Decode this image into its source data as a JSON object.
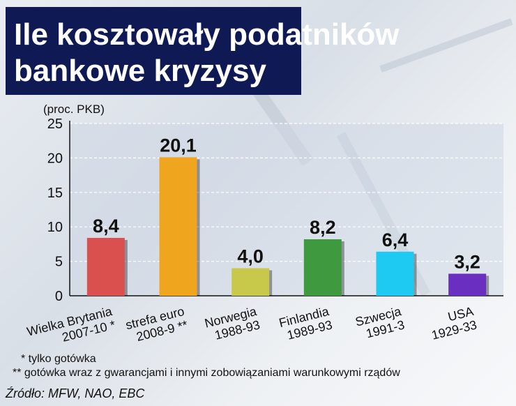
{
  "title": {
    "line1": "Ile kosztowały podatników",
    "line2": "bankowe kryzysy"
  },
  "chart_data": {
    "type": "bar",
    "ylabel": "(proc. PKB)",
    "ylim": [
      0,
      25
    ],
    "yticks": [
      0,
      5,
      10,
      15,
      20,
      25
    ],
    "grid": true,
    "categories": [
      [
        "Wielka Brytania",
        "2007-10 *"
      ],
      [
        "strefa euro",
        "2008-9 **"
      ],
      [
        "Norwegia",
        "1988-93"
      ],
      [
        "Finlandia",
        "1989-93"
      ],
      [
        "Szwecja",
        "1991-3"
      ],
      [
        "USA",
        "1929-33"
      ]
    ],
    "values": [
      8.4,
      20.1,
      4.0,
      8.2,
      6.4,
      3.2
    ],
    "value_labels": [
      "8,4",
      "20,1",
      "4,0",
      "8,2",
      "6,4",
      "3,2"
    ],
    "colors": [
      "#d9504e",
      "#f0a51f",
      "#c8c94a",
      "#3f9a3f",
      "#1fcaf2",
      "#6a2fc0"
    ]
  },
  "footnotes": {
    "note1": "* tylko gotówka",
    "note2": "** gotówka wraz z gwarancjami i innymi zobowiązaniami warunkowymi rządów"
  },
  "source": "Źródło: MFW, NAO, EBC"
}
